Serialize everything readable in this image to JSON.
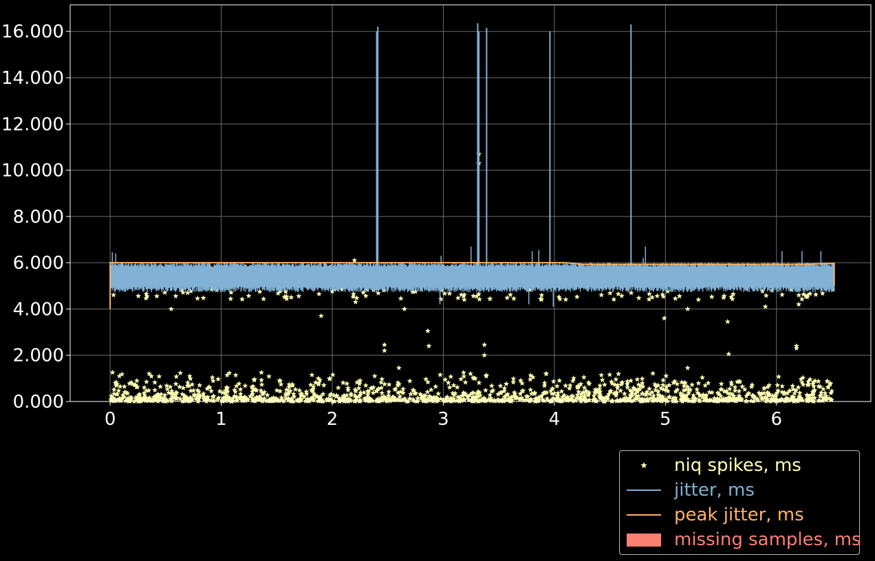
{
  "colors": {
    "background": "#000000",
    "axis": "#ffffff",
    "grid": "#6e6e6e",
    "jitter": "#81b1d4",
    "peak_jitter": "#fdb462",
    "spikes": "#ffffb3",
    "missing": "#fb8072",
    "legend_border": "#bdbdbd"
  },
  "chart_data": {
    "type": "line",
    "title": "",
    "xlabel": "",
    "ylabel": "",
    "xlim": [
      -0.36,
      6.85
    ],
    "ylim": [
      0,
      17.15
    ],
    "grid": true,
    "legend_position": "below-right",
    "x_ticks": [
      0,
      1,
      2,
      3,
      4,
      5,
      6
    ],
    "x_tick_labels": [
      "0",
      "1",
      "2",
      "3",
      "4",
      "5",
      "6"
    ],
    "y_ticks": [
      0,
      2,
      4,
      6,
      8,
      10,
      12,
      14,
      16
    ],
    "y_tick_labels": [
      "0.000",
      "2.000",
      "4.000",
      "6.000",
      "8.000",
      "10.000",
      "12.000",
      "14.000",
      "16.000"
    ],
    "x_range": [
      0,
      6.52
    ],
    "series": [
      {
        "name": "niq spikes, ms",
        "kind": "scatter",
        "marker": "star",
        "dense_band": [
          0,
          1.0
        ],
        "outliers": [
          [
            0.55,
            4.0
          ],
          [
            1.9,
            3.7
          ],
          [
            2.47,
            2.45
          ],
          [
            2.47,
            2.2
          ],
          [
            2.65,
            4.0
          ],
          [
            2.86,
            3.05
          ],
          [
            2.87,
            2.4
          ],
          [
            3.37,
            2.45
          ],
          [
            3.37,
            2.0
          ],
          [
            3.32,
            10.7
          ],
          [
            3.32,
            10.3
          ],
          [
            4.99,
            3.6
          ],
          [
            5.56,
            3.45
          ],
          [
            5.57,
            2.05
          ],
          [
            6.18,
            2.4
          ],
          [
            6.18,
            2.3
          ],
          [
            2.2,
            6.1
          ],
          [
            2.6,
            1.45
          ],
          [
            5.2,
            1.45
          ],
          [
            2.21,
            4.3
          ],
          [
            5.2,
            4.0
          ],
          [
            5.9,
            4.1
          ],
          [
            6.2,
            4.2
          ],
          [
            4.88,
            4.5
          ],
          [
            1.63,
            4.5
          ]
        ]
      },
      {
        "name": "jitter, ms",
        "kind": "line",
        "band": [
          4.85,
          6.0
        ],
        "spikes": [
          [
            2.4,
            16.0
          ],
          [
            2.41,
            16.2
          ],
          [
            3.31,
            16.35
          ],
          [
            3.32,
            16.0
          ],
          [
            3.39,
            16.15
          ],
          [
            3.96,
            16.0
          ],
          [
            4.69,
            16.3
          ]
        ]
      },
      {
        "name": "peak jitter, ms",
        "kind": "line",
        "points": [
          [
            0,
            4.0
          ],
          [
            0,
            6.0
          ],
          [
            4.1,
            6.0
          ],
          [
            4.25,
            5.93
          ],
          [
            6.2,
            5.93
          ],
          [
            6.52,
            5.97
          ],
          [
            6.52,
            5.0
          ]
        ]
      },
      {
        "name": "missing samples, ms",
        "kind": "area",
        "values": []
      }
    ]
  }
}
